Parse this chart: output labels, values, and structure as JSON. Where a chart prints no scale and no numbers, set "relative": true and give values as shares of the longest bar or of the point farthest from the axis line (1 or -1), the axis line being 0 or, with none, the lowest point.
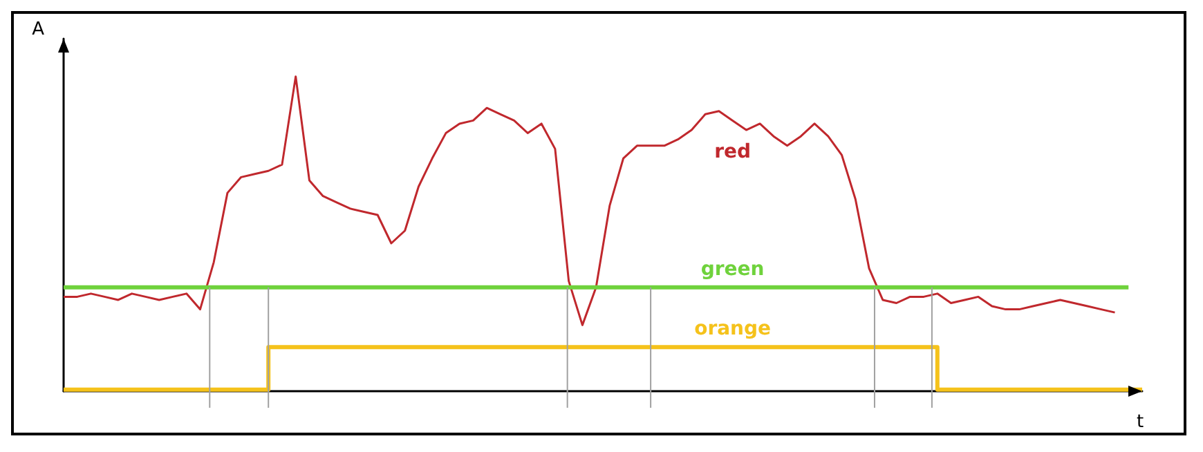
{
  "chart_data": {
    "type": "line",
    "relative": true,
    "xlabel": "t",
    "ylabel": "A",
    "tick_labels": false,
    "grid": false,
    "legend": false,
    "marker": "none",
    "categories": [
      null,
      null,
      null,
      null,
      null,
      null,
      null,
      null,
      null,
      null,
      null,
      null,
      null,
      null,
      null,
      null,
      null,
      null,
      null,
      null,
      null,
      null,
      null,
      null,
      null,
      null,
      null,
      null,
      null,
      null,
      null,
      null,
      null,
      null,
      null,
      null,
      null,
      null,
      null,
      null,
      null,
      null,
      null,
      null,
      null,
      null,
      null,
      null,
      null,
      null,
      null,
      null,
      null,
      null,
      null,
      null,
      null,
      null,
      null,
      null,
      null,
      null,
      null,
      null,
      null,
      null,
      null,
      null,
      null,
      null,
      null,
      null,
      null,
      null,
      null,
      null,
      null,
      null,
      null,
      null
    ],
    "series": [
      {
        "name": "red",
        "color": "#c0282d",
        "values": [
          0.3,
          0.3,
          0.31,
          0.3,
          0.29,
          0.31,
          0.3,
          0.29,
          0.3,
          0.31,
          0.26,
          0.41,
          0.63,
          0.68,
          0.69,
          0.7,
          0.72,
          1,
          0.67,
          0.62,
          0.6,
          0.58,
          0.57,
          0.56,
          0.47,
          0.51,
          0.65,
          0.74,
          0.82,
          0.85,
          0.86,
          0.9,
          0.88,
          0.86,
          0.82,
          0.85,
          0.77,
          0.35,
          0.21,
          0.33,
          0.59,
          0.74,
          0.78,
          0.78,
          0.78,
          0.8,
          0.83,
          0.88,
          0.89,
          0.86,
          0.83,
          0.85,
          0.81,
          0.78,
          0.81,
          0.85,
          0.81,
          0.75,
          0.61,
          0.39,
          0.29,
          0.28,
          0.3,
          0.3,
          0.31,
          0.28,
          0.29,
          0.3,
          0.27,
          0.26,
          0.26,
          0.27,
          0.28,
          0.29,
          0.28,
          0.27,
          0.26,
          0.25,
          null,
          null
        ]
      },
      {
        "name": "green",
        "color": "#6fd23c",
        "values": [
          0.33,
          0.33,
          0.33,
          0.33,
          0.33,
          0.33,
          0.33,
          0.33,
          0.33,
          0.33,
          0.33,
          0.33,
          0.33,
          0.33,
          0.33,
          0.33,
          0.33,
          0.33,
          0.33,
          0.33,
          0.33,
          0.33,
          0.33,
          0.33,
          0.33,
          0.33,
          0.33,
          0.33,
          0.33,
          0.33,
          0.33,
          0.33,
          0.33,
          0.33,
          0.33,
          0.33,
          0.33,
          0.33,
          0.33,
          0.33,
          0.33,
          0.33,
          0.33,
          0.33,
          0.33,
          0.33,
          0.33,
          0.33,
          0.33,
          0.33,
          0.33,
          0.33,
          0.33,
          0.33,
          0.33,
          0.33,
          0.33,
          0.33,
          0.33,
          0.33,
          0.33,
          0.33,
          0.33,
          0.33,
          0.33,
          0.33,
          0.33,
          0.33,
          0.33,
          0.33,
          0.33,
          0.33,
          0.33,
          0.33,
          0.33,
          0.33,
          0.33,
          0.33,
          0.33,
          null
        ]
      },
      {
        "name": "orange",
        "type": "step",
        "color": "#f5c21b",
        "values": [
          0.005,
          0.005,
          0.005,
          0.005,
          0.005,
          0.005,
          0.005,
          0.005,
          0.005,
          0.005,
          0.005,
          0.005,
          0.005,
          0.005,
          0.005,
          0.14,
          0.14,
          0.14,
          0.14,
          0.14,
          0.14,
          0.14,
          0.14,
          0.14,
          0.14,
          0.14,
          0.14,
          0.14,
          0.14,
          0.14,
          0.14,
          0.14,
          0.14,
          0.14,
          0.14,
          0.14,
          0.14,
          0.14,
          0.14,
          0.14,
          0.14,
          0.14,
          0.14,
          0.14,
          0.14,
          0.14,
          0.14,
          0.14,
          0.14,
          0.14,
          0.14,
          0.14,
          0.14,
          0.14,
          0.14,
          0.14,
          0.14,
          0.14,
          0.14,
          0.14,
          0.14,
          0.14,
          0.14,
          0.14,
          0.005,
          0.005,
          0.005,
          0.005,
          0.005,
          0.005,
          0.005,
          0.005,
          0.005,
          0.005,
          0.005,
          0.005,
          0.005,
          0.005,
          0.005,
          0.005
        ]
      }
    ]
  }
}
